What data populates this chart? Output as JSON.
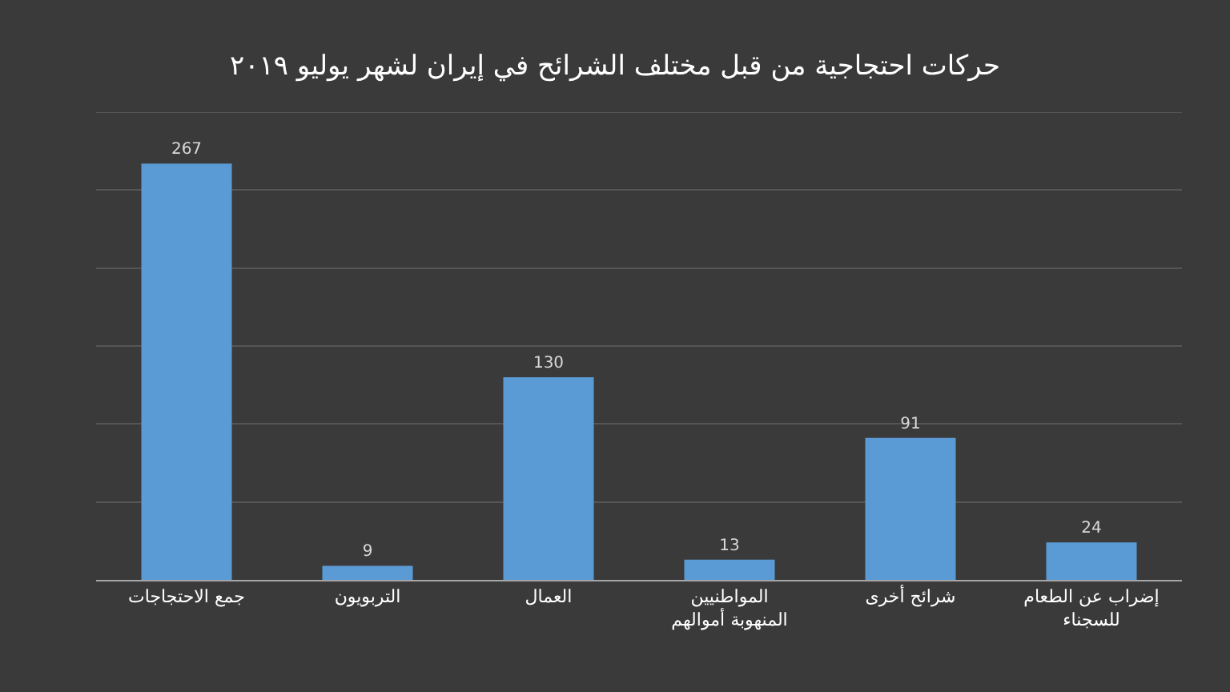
{
  "chart_data": {
    "type": "bar",
    "title": "حركات احتجاجية من قبل مختلف الشرائح في إيران لشهر يوليو ٢٠١٩",
    "categories": [
      "جمع الاحتجاجات",
      "التربويون",
      "العمال",
      "المواطنيين المنهوبة أموالهم",
      "شرائح أخرى",
      "إضراب عن الطعام للسجناء"
    ],
    "values": [
      267,
      9,
      130,
      13,
      91,
      24
    ],
    "color": "#5b9bd5",
    "ylim": [
      0,
      300
    ],
    "yticks": [
      {
        "value": 0,
        "label": null
      },
      {
        "value": 50,
        "label": null
      },
      {
        "value": 100,
        "label": null
      },
      {
        "value": 150,
        "label": null
      },
      {
        "value": 200,
        "label": null
      },
      {
        "value": 250,
        "label": null
      },
      {
        "value": 300,
        "label": null
      }
    ],
    "tick_labels": "x",
    "grid": "y",
    "data_labels": true
  }
}
